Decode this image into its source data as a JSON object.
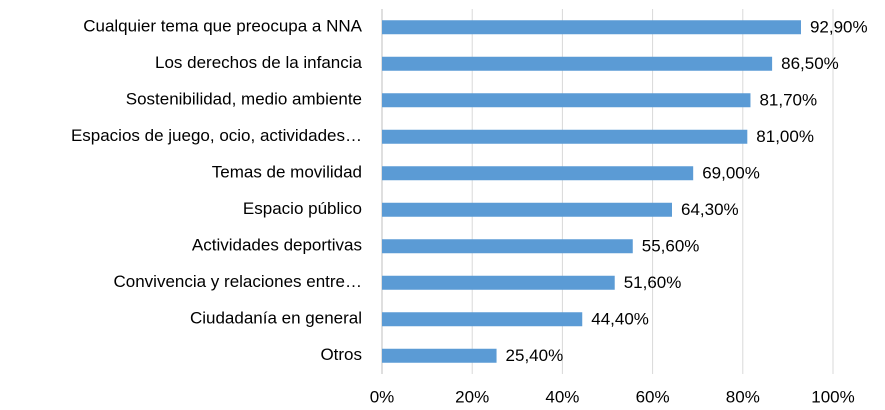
{
  "chart_data": {
    "type": "bar",
    "orientation": "horizontal",
    "categories": [
      "Cualquier tema que preocupa a NNA",
      "Los derechos de la infancia",
      "Sostenibilidad, medio ambiente",
      "Espacios de juego, ocio, actividades…",
      "Temas de movilidad",
      "Espacio público",
      "Actividades deportivas",
      "Convivencia y relaciones entre…",
      "Ciudadanía en general",
      "Otros"
    ],
    "values": [
      92.9,
      86.5,
      81.7,
      81.0,
      69.0,
      64.3,
      55.6,
      51.6,
      44.4,
      25.4
    ],
    "value_labels": [
      "92,90%",
      "86,50%",
      "81,70%",
      "81,00%",
      "69,00%",
      "64,30%",
      "55,60%",
      "51,60%",
      "44,40%",
      "25,40%"
    ],
    "color": "#5b9bd5",
    "xlim": [
      0,
      100
    ],
    "xticks": [
      {
        "value": 0,
        "label": "0%"
      },
      {
        "value": 20,
        "label": "20%"
      },
      {
        "value": 40,
        "label": "40%"
      },
      {
        "value": 60,
        "label": "60%"
      },
      {
        "value": 80,
        "label": "80%"
      },
      {
        "value": 100,
        "label": "100%"
      }
    ],
    "grid": true
  }
}
